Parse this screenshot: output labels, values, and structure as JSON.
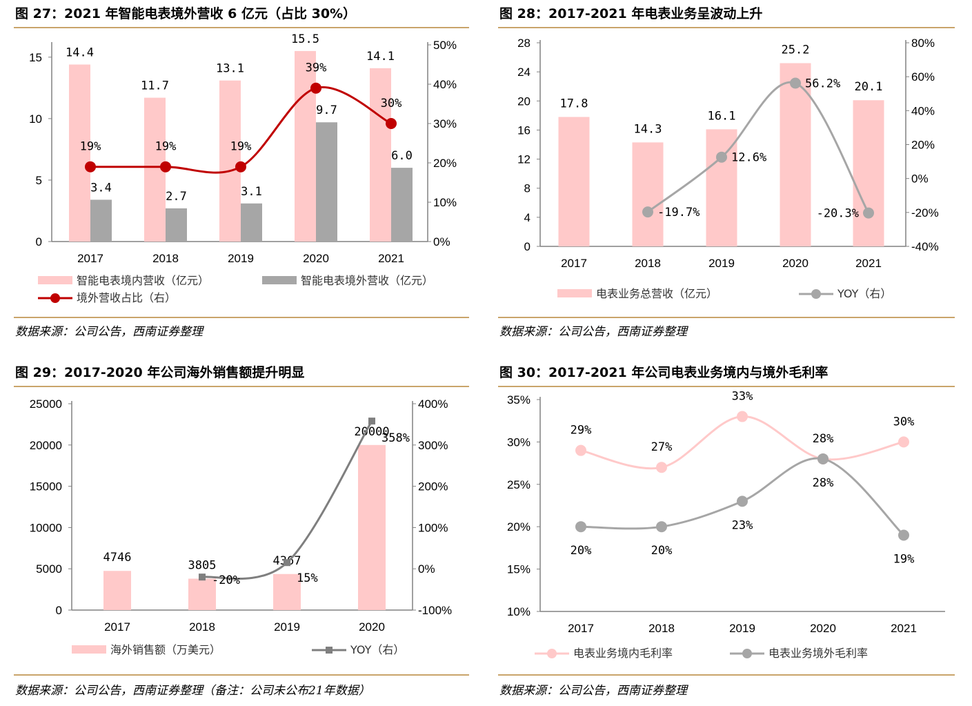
{
  "chart_data": [
    {
      "type": "bar",
      "title": "图 27：2021 年智能电表境外营收 6 亿元（占比 30%）",
      "source": "数据来源：公司公告，西南证券整理",
      "categories": [
        "2017",
        "2018",
        "2019",
        "2020",
        "2021"
      ],
      "ylim": [
        0,
        16
      ],
      "yticks": [
        "0",
        "5",
        "10",
        "15"
      ],
      "y2lim": [
        0,
        50
      ],
      "y2ticks": [
        "0%",
        "10%",
        "20%",
        "30%",
        "40%",
        "50%"
      ],
      "series": [
        {
          "name": "智能电表境内营收（亿元）",
          "type": "bar",
          "axis": "left",
          "color": "#FFC9C9",
          "values": [
            14.4,
            11.7,
            13.1,
            15.5,
            14.1
          ],
          "labels": [
            "14.4",
            "11.7",
            "13.1",
            "15.5",
            "14.1"
          ]
        },
        {
          "name": "智能电表境外营收（亿元）",
          "type": "bar",
          "axis": "left",
          "color": "#A6A6A6",
          "values": [
            3.4,
            2.7,
            3.1,
            9.7,
            6.0
          ],
          "labels": [
            "3.4",
            "2.7",
            "3.1",
            "9.7",
            "6.0"
          ]
        },
        {
          "name": "境外营收占比（右）",
          "type": "line",
          "axis": "right",
          "color": "#C00000",
          "values": [
            19,
            19,
            19,
            39,
            30
          ],
          "labels": [
            "19%",
            "19%",
            "19%",
            "39%",
            "30%"
          ]
        }
      ]
    },
    {
      "type": "bar",
      "title": "图 28：2017-2021 年电表业务呈波动上升",
      "source": "数据来源：公司公告，西南证券整理",
      "categories": [
        "2017",
        "2018",
        "2019",
        "2020",
        "2021"
      ],
      "ylim": [
        0,
        28
      ],
      "yticks": [
        "0",
        "4",
        "8",
        "12",
        "16",
        "20",
        "24",
        "28"
      ],
      "y2lim": [
        -40,
        80
      ],
      "y2ticks": [
        "-40%",
        "-20%",
        "0%",
        "20%",
        "40%",
        "60%",
        "80%"
      ],
      "series": [
        {
          "name": "电表业务总营收（亿元）",
          "type": "bar",
          "axis": "left",
          "color": "#FFC9C9",
          "values": [
            17.8,
            14.3,
            16.1,
            25.2,
            20.1
          ],
          "labels": [
            "17.8",
            "14.3",
            "16.1",
            "25.2",
            "20.1"
          ]
        },
        {
          "name": "YOY（右）",
          "type": "line",
          "axis": "right",
          "color": "#A6A6A6",
          "values": [
            null,
            -19.7,
            12.6,
            56.2,
            -20.3
          ],
          "labels": [
            "",
            "-19.7%",
            "12.6%",
            "56.2%",
            "-20.3%"
          ]
        }
      ]
    },
    {
      "type": "bar",
      "title": "图 29：2017-2020 年公司海外销售额提升明显",
      "source": "数据来源：公司公告，西南证券整理（备注：公司未公布21年数据）",
      "categories": [
        "2017",
        "2018",
        "2019",
        "2020"
      ],
      "ylim": [
        0,
        25000
      ],
      "yticks": [
        "0",
        "5000",
        "10000",
        "15000",
        "20000",
        "25000"
      ],
      "y2lim": [
        -100,
        400
      ],
      "y2ticks": [
        "-100%",
        "0%",
        "100%",
        "200%",
        "300%",
        "400%"
      ],
      "series": [
        {
          "name": "海外销售额（万美元）",
          "type": "bar",
          "axis": "left",
          "color": "#FFC9C9",
          "values": [
            4746,
            3805,
            4367,
            20000
          ],
          "labels": [
            "4746",
            "3805",
            "4367",
            "20000"
          ]
        },
        {
          "name": "YOY（右）",
          "type": "line",
          "axis": "right",
          "color": "#7F7F7F",
          "marker": "square",
          "values": [
            null,
            -20,
            15,
            358
          ],
          "labels": [
            "",
            "-20%",
            "15%",
            "358%"
          ]
        }
      ]
    },
    {
      "type": "line",
      "title": "图 30：2017-2021 年公司电表业务境内与境外毛利率",
      "source": "数据来源：公司公告，西南证券整理",
      "categories": [
        "2017",
        "2018",
        "2019",
        "2020",
        "2021"
      ],
      "ylim": [
        10,
        35
      ],
      "yticks": [
        "10%",
        "15%",
        "20%",
        "25%",
        "30%",
        "35%"
      ],
      "series": [
        {
          "name": "电表业务境内毛利率",
          "type": "line",
          "axis": "left",
          "color": "#FFC9C9",
          "values": [
            29,
            27,
            33,
            28,
            30
          ],
          "labels": [
            "29%",
            "27%",
            "33%",
            "28%",
            "30%"
          ]
        },
        {
          "name": "电表业务境外毛利率",
          "type": "line",
          "axis": "left",
          "color": "#A6A6A6",
          "values": [
            20,
            20,
            23,
            28,
            19
          ],
          "labels": [
            "20%",
            "20%",
            "23%",
            "28%",
            "19%"
          ]
        }
      ]
    }
  ],
  "colors": {
    "rule": "#C9A46A",
    "axis": "#808080"
  }
}
